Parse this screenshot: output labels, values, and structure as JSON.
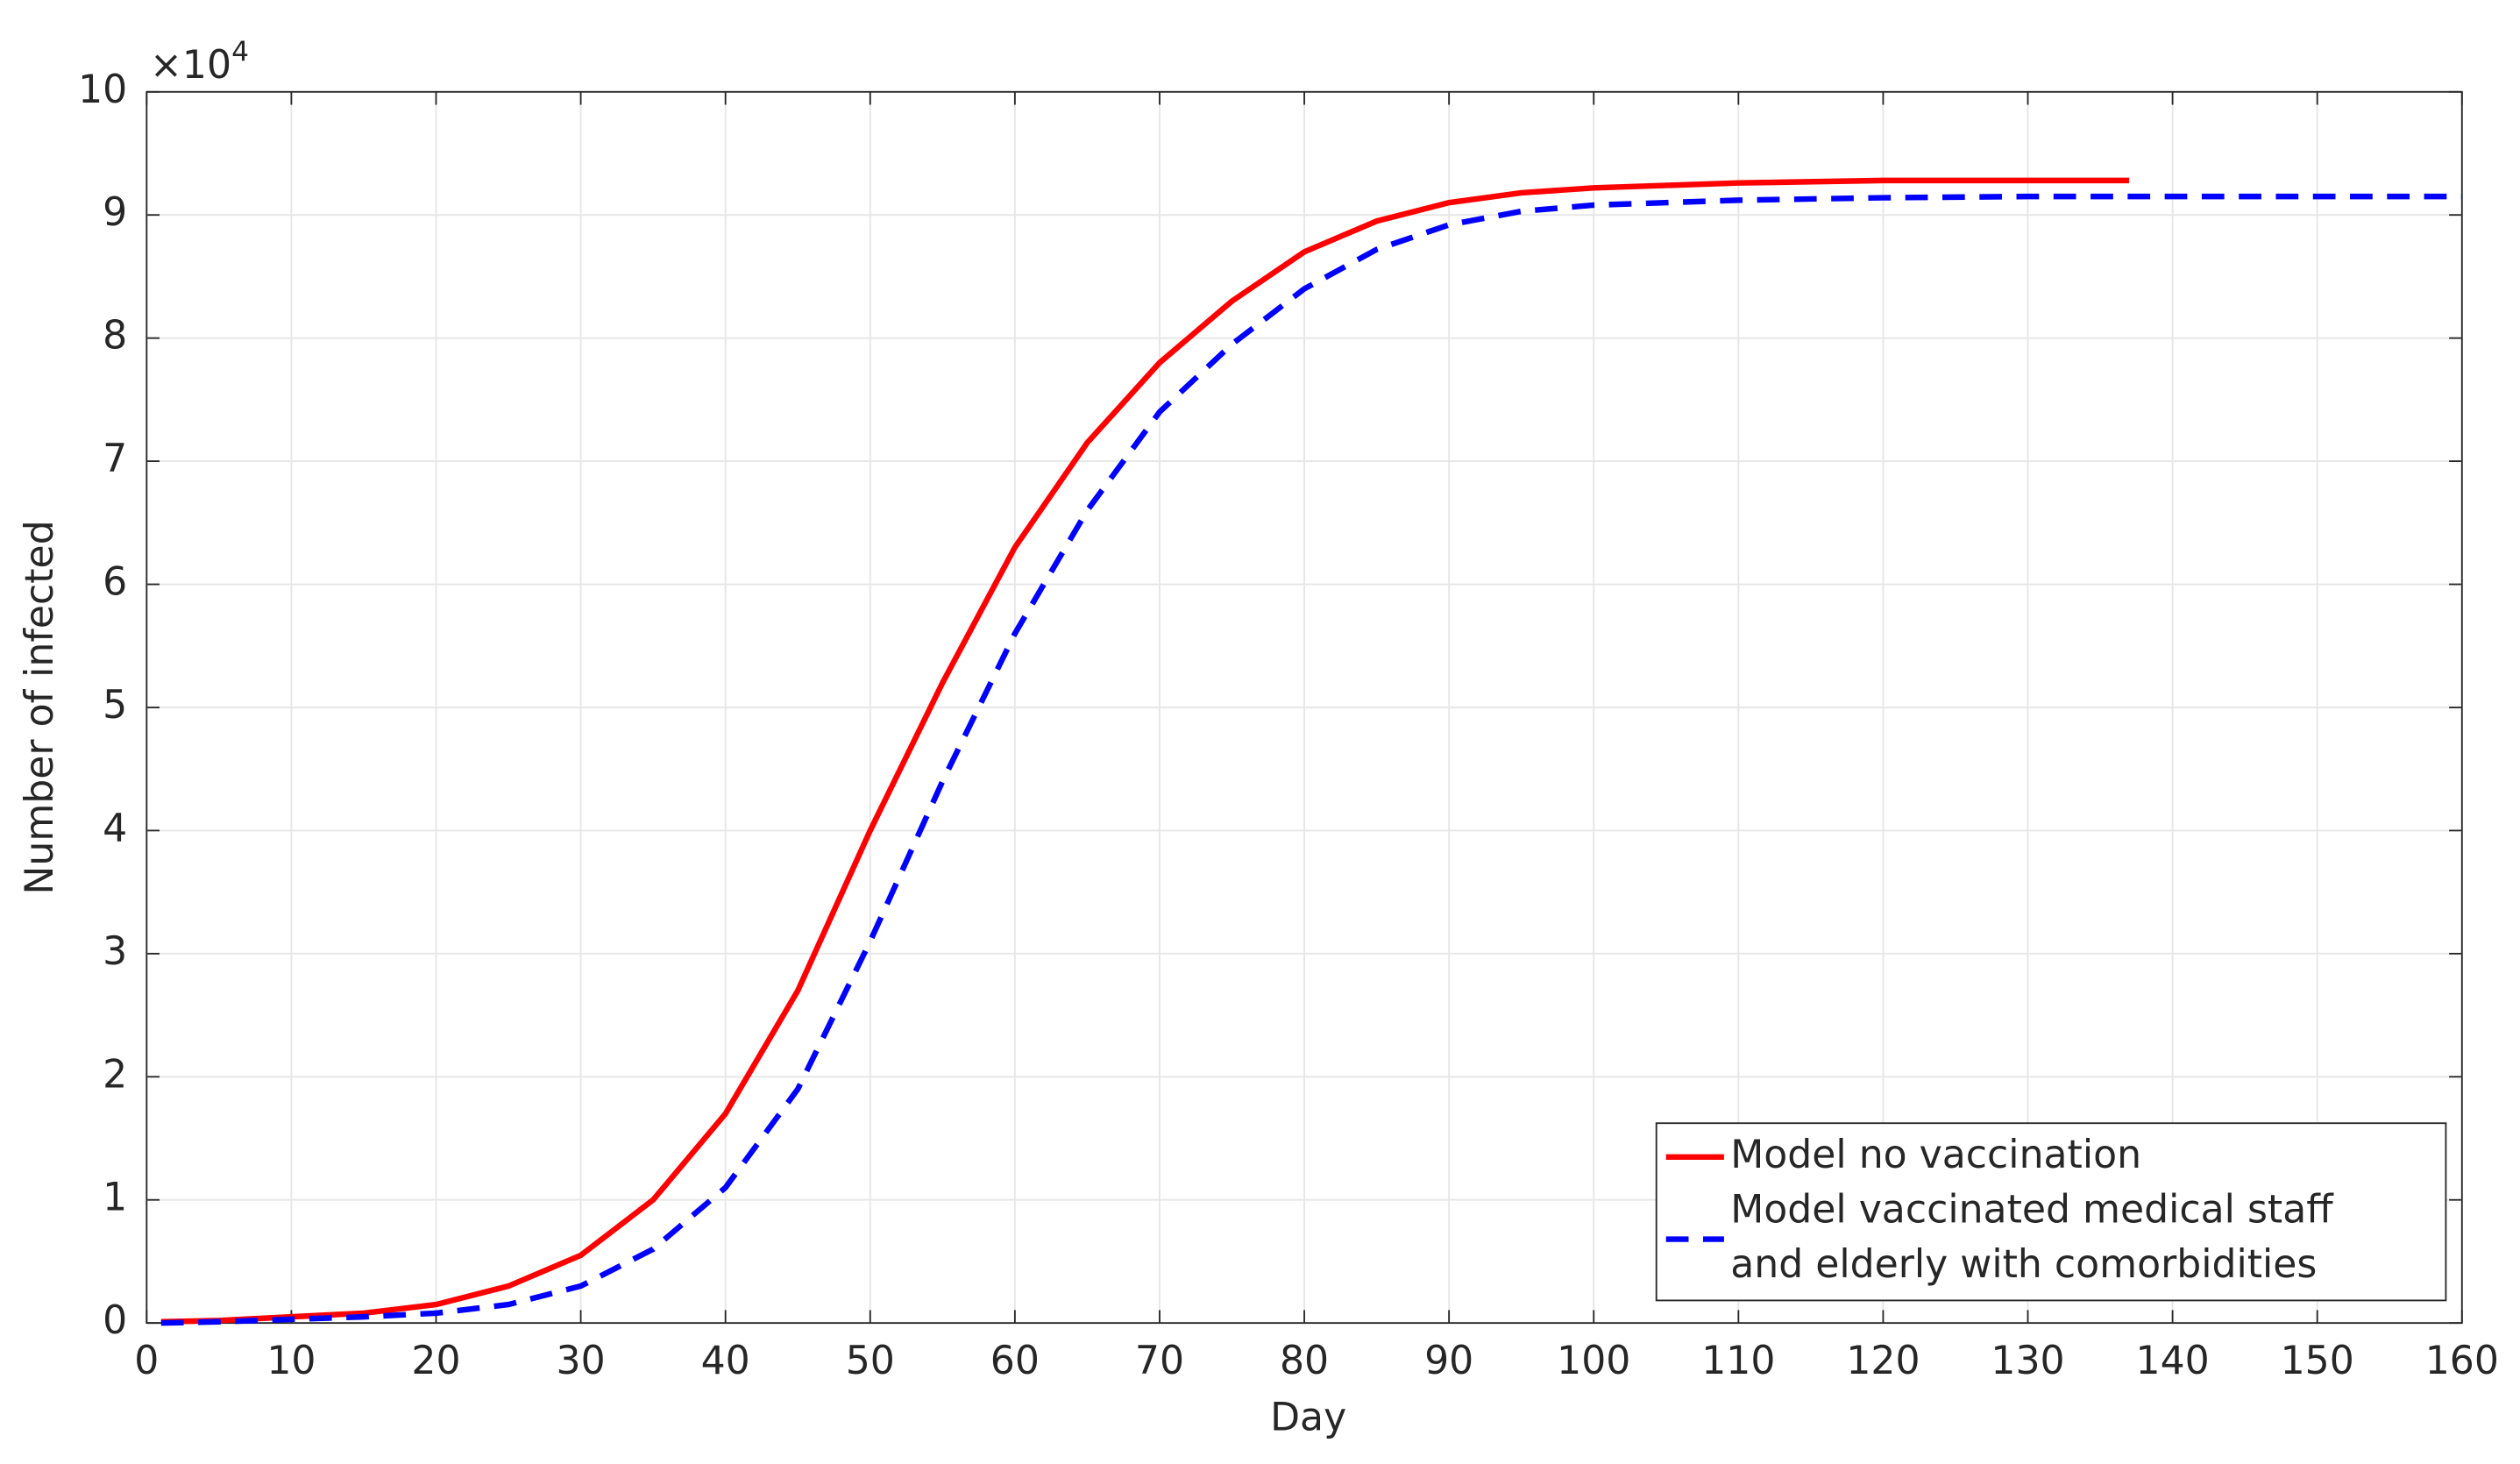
{
  "chart_data": {
    "type": "line",
    "xlabel": "Day",
    "ylabel": "Number of infected",
    "y_multiplier": {
      "base": "×10",
      "exponent": "4"
    },
    "x": [
      1,
      5,
      10,
      15,
      20,
      25,
      30,
      35,
      40,
      45,
      50,
      55,
      60,
      65,
      70,
      75,
      80,
      85,
      90,
      95,
      100,
      110,
      120,
      130,
      137,
      140,
      150,
      160
    ],
    "series": [
      {
        "name": "Model no vaccination",
        "color": "#ff0000",
        "dash": "solid",
        "values": [
          0.01,
          0.02,
          0.05,
          0.08,
          0.15,
          0.3,
          0.55,
          1.0,
          1.7,
          2.7,
          4.0,
          5.2,
          6.3,
          7.15,
          7.8,
          8.3,
          8.7,
          8.95,
          9.1,
          9.18,
          9.22,
          9.26,
          9.28,
          9.28,
          9.28,
          null,
          null,
          null
        ]
      },
      {
        "name": "Model vaccinated medical staff\nand elderly with comorbidities",
        "color": "#0000ff",
        "dash": "dashed",
        "values": [
          0.0,
          0.01,
          0.03,
          0.05,
          0.08,
          0.15,
          0.3,
          0.6,
          1.1,
          1.9,
          3.1,
          4.4,
          5.6,
          6.6,
          7.4,
          7.95,
          8.4,
          8.72,
          8.92,
          9.03,
          9.08,
          9.12,
          9.14,
          9.15,
          9.15,
          9.15,
          9.15,
          9.15
        ]
      }
    ],
    "xlim": [
      0,
      160
    ],
    "xticks": [
      0,
      10,
      20,
      30,
      40,
      50,
      60,
      70,
      80,
      90,
      100,
      110,
      120,
      130,
      140,
      150,
      160
    ],
    "ylim": [
      0,
      10
    ],
    "yticks": [
      0,
      1,
      2,
      3,
      4,
      5,
      6,
      7,
      8,
      9,
      10
    ],
    "grid": true,
    "legend": "lower right"
  }
}
